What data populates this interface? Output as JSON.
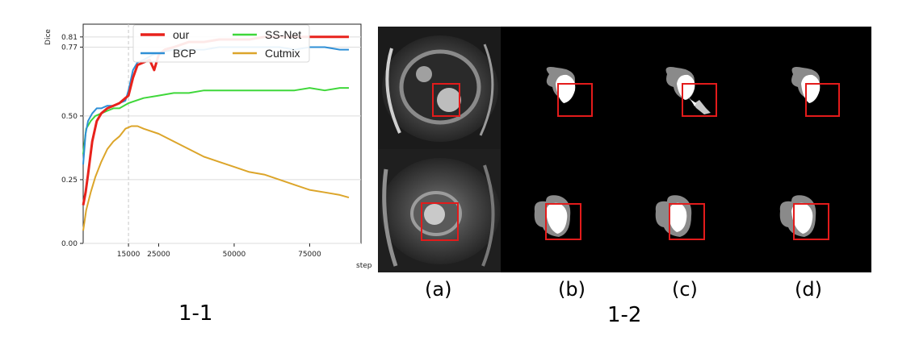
{
  "chart_data": {
    "type": "line",
    "xlabel": "step",
    "ylabel": "Dice",
    "xlim": [
      0,
      92000
    ],
    "ylim": [
      0,
      0.86
    ],
    "x_ticks": [
      15000,
      25000,
      50000,
      75000
    ],
    "x_tick_labels": [
      "15000",
      "25000",
      "50000",
      "75000"
    ],
    "y_ticks": [
      0.0,
      0.25,
      0.5,
      0.77,
      0.81
    ],
    "y_tick_labels": [
      "0.00",
      "0.25",
      "0.50",
      "0.77",
      "0.81"
    ],
    "reference_lines": {
      "vertical_x": 15000,
      "horizontal_y": [
        0.77,
        0.81
      ]
    },
    "grid": true,
    "legend_position": "top-center",
    "series": [
      {
        "name": "our",
        "color": "#e8221c",
        "width": 3,
        "x": [
          0,
          800,
          1600,
          3000,
          4500,
          6000,
          8000,
          10000,
          12000,
          14000,
          15000,
          16500,
          18000,
          20000,
          22000,
          23500,
          25000,
          27000,
          30000,
          35000,
          40000,
          45000,
          50000,
          55000,
          60000,
          65000,
          70000,
          75000,
          80000,
          85000,
          88000
        ],
        "y": [
          0.15,
          0.2,
          0.27,
          0.4,
          0.48,
          0.51,
          0.53,
          0.54,
          0.55,
          0.57,
          0.58,
          0.65,
          0.7,
          0.71,
          0.72,
          0.68,
          0.74,
          0.76,
          0.77,
          0.79,
          0.79,
          0.8,
          0.8,
          0.8,
          0.81,
          0.81,
          0.81,
          0.81,
          0.81,
          0.81,
          0.81
        ]
      },
      {
        "name": "BCP",
        "color": "#2e8fd6",
        "width": 2,
        "x": [
          0,
          800,
          1600,
          3000,
          4500,
          6000,
          8000,
          10000,
          12000,
          14000,
          15000,
          16500,
          18000,
          20000,
          23000,
          26000,
          30000,
          35000,
          40000,
          45000,
          50000,
          55000,
          60000,
          65000,
          70000,
          75000,
          80000,
          85000,
          88000
        ],
        "y": [
          0.31,
          0.43,
          0.48,
          0.51,
          0.53,
          0.53,
          0.54,
          0.54,
          0.55,
          0.56,
          0.6,
          0.68,
          0.71,
          0.72,
          0.74,
          0.75,
          0.76,
          0.76,
          0.76,
          0.77,
          0.77,
          0.77,
          0.77,
          0.77,
          0.76,
          0.77,
          0.77,
          0.76,
          0.76
        ]
      },
      {
        "name": "SS-Net",
        "color": "#3fd73a",
        "width": 2,
        "x": [
          0,
          1000,
          2500,
          4000,
          6000,
          8000,
          10000,
          12000,
          15000,
          20000,
          25000,
          30000,
          35000,
          40000,
          45000,
          50000,
          55000,
          60000,
          65000,
          70000,
          75000,
          80000,
          85000,
          88000
        ],
        "y": [
          0.35,
          0.45,
          0.48,
          0.5,
          0.51,
          0.52,
          0.53,
          0.53,
          0.55,
          0.57,
          0.58,
          0.59,
          0.59,
          0.6,
          0.6,
          0.6,
          0.6,
          0.6,
          0.6,
          0.6,
          0.61,
          0.6,
          0.61,
          0.61
        ]
      },
      {
        "name": "Cutmix",
        "color": "#dca52a",
        "width": 2,
        "x": [
          0,
          1000,
          2500,
          4000,
          6000,
          8000,
          10000,
          12000,
          14000,
          16000,
          18000,
          20000,
          25000,
          30000,
          35000,
          40000,
          45000,
          50000,
          55000,
          60000,
          65000,
          70000,
          75000,
          80000,
          85000,
          88000
        ],
        "y": [
          0.05,
          0.13,
          0.2,
          0.26,
          0.32,
          0.37,
          0.4,
          0.42,
          0.45,
          0.46,
          0.46,
          0.45,
          0.43,
          0.4,
          0.37,
          0.34,
          0.32,
          0.3,
          0.28,
          0.27,
          0.25,
          0.23,
          0.21,
          0.2,
          0.19,
          0.18
        ]
      }
    ]
  },
  "labels": {
    "chart_panel": "1-1",
    "image_panel": "1-2",
    "columns": [
      "(a)",
      "(b)",
      "(c)",
      "(d)"
    ]
  }
}
